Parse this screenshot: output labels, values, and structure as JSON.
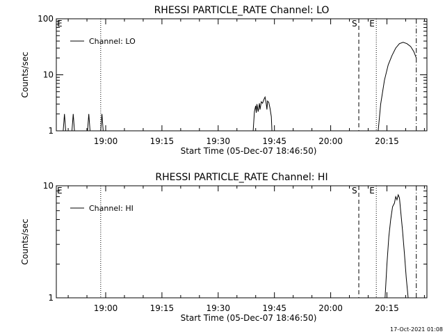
{
  "footer": {
    "timestamp": "17-Oct-2021 01:08"
  },
  "chart_data": [
    {
      "type": "line",
      "title": "RHESSI PARTICLE_RATE Channel: LO",
      "xlabel": "Start Time (05-Dec-07 18:46:50)",
      "ylabel": "Counts/sec",
      "y_scale": "log",
      "ylim": [
        1,
        100
      ],
      "xlim": [
        "18:46:50",
        "20:25:40"
      ],
      "x_ticks": [
        "19:00",
        "19:15",
        "19:30",
        "19:45",
        "20:00",
        "20:15"
      ],
      "y_ticks": [
        "1",
        "10",
        "100"
      ],
      "grid": false,
      "legend": {
        "placement": "top-left",
        "entries": [
          "Channel: LO"
        ]
      },
      "markers": [
        {
          "label": "E",
          "time": "18:46:50",
          "style": "edge"
        },
        {
          "label": "",
          "time": "18:58:40",
          "style": "dotted"
        },
        {
          "label": "S",
          "time": "20:07:30",
          "style": "dashed"
        },
        {
          "label": "E",
          "time": "20:12:10",
          "style": "dotted"
        },
        {
          "label": "",
          "time": "20:22:50",
          "style": "dashdot"
        }
      ],
      "series": [
        {
          "name": "Channel: LO",
          "points": [
            [
              "18:48:40",
              1
            ],
            [
              "18:49:00",
              2
            ],
            [
              "18:49:20",
              1
            ],
            [
              "18:51:00",
              1
            ],
            [
              "18:51:20",
              2
            ],
            [
              "18:51:40",
              1
            ],
            [
              "18:55:10",
              1
            ],
            [
              "18:55:30",
              2
            ],
            [
              "18:55:50",
              1
            ],
            [
              "18:58:40",
              1
            ],
            [
              "18:59:00",
              2
            ],
            [
              "18:59:20",
              1
            ],
            [
              "19:39:20",
              1
            ],
            [
              "19:39:40",
              2.2
            ],
            [
              "19:40:00",
              2.8
            ],
            [
              "19:40:10",
              2.1
            ],
            [
              "19:40:20",
              3
            ],
            [
              "19:40:40",
              2.2
            ],
            [
              "19:41:00",
              3.1
            ],
            [
              "19:41:10",
              2.4
            ],
            [
              "19:41:30",
              3.3
            ],
            [
              "19:41:50",
              3.1
            ],
            [
              "19:42:10",
              3.6
            ],
            [
              "19:42:30",
              4
            ],
            [
              "19:42:50",
              3
            ],
            [
              "19:43:00",
              2.4
            ],
            [
              "19:43:10",
              3.4
            ],
            [
              "19:43:30",
              3.2
            ],
            [
              "19:43:50",
              2.5
            ],
            [
              "19:44:10",
              1.8
            ],
            [
              "19:44:20",
              1
            ],
            [
              "20:12:40",
              1
            ],
            [
              "20:13:20",
              3
            ],
            [
              "20:14:20",
              8
            ],
            [
              "20:15:20",
              15
            ],
            [
              "20:16:20",
              22
            ],
            [
              "20:17:20",
              30
            ],
            [
              "20:18:20",
              36
            ],
            [
              "20:19:20",
              38
            ],
            [
              "20:20:20",
              36
            ],
            [
              "20:21:20",
              32
            ],
            [
              "20:22:10",
              26
            ],
            [
              "20:22:50",
              20
            ]
          ]
        }
      ]
    },
    {
      "type": "line",
      "title": "RHESSI PARTICLE_RATE Channel: HI",
      "xlabel": "Start Time (05-Dec-07 18:46:50)",
      "ylabel": "Counts/sec",
      "y_scale": "log",
      "ylim": [
        1,
        10
      ],
      "xlim": [
        "18:46:50",
        "20:25:40"
      ],
      "x_ticks": [
        "19:00",
        "19:15",
        "19:30",
        "19:45",
        "20:00",
        "20:15"
      ],
      "y_ticks": [
        "1",
        "10"
      ],
      "grid": false,
      "legend": {
        "placement": "top-left",
        "entries": [
          "Channel: HI"
        ]
      },
      "markers": [
        {
          "label": "E",
          "time": "18:46:50",
          "style": "edge"
        },
        {
          "label": "",
          "time": "18:58:40",
          "style": "dotted"
        },
        {
          "label": "S",
          "time": "20:07:30",
          "style": "dashed"
        },
        {
          "label": "E",
          "time": "20:12:10",
          "style": "dotted"
        },
        {
          "label": "",
          "time": "20:22:50",
          "style": "dashdot"
        }
      ],
      "series": [
        {
          "name": "Channel: HI",
          "points": [
            [
              "20:14:30",
              1
            ],
            [
              "20:15:00",
              2
            ],
            [
              "20:15:30",
              3.5
            ],
            [
              "20:16:00",
              5
            ],
            [
              "20:16:30",
              6.5
            ],
            [
              "20:17:00",
              7
            ],
            [
              "20:17:20",
              8
            ],
            [
              "20:17:40",
              7.5
            ],
            [
              "20:18:00",
              8.3
            ],
            [
              "20:18:20",
              7.8
            ],
            [
              "20:18:40",
              6
            ],
            [
              "20:19:10",
              4
            ],
            [
              "20:19:40",
              2.5
            ],
            [
              "20:20:10",
              1.5
            ],
            [
              "20:20:40",
              1
            ]
          ]
        }
      ]
    }
  ]
}
